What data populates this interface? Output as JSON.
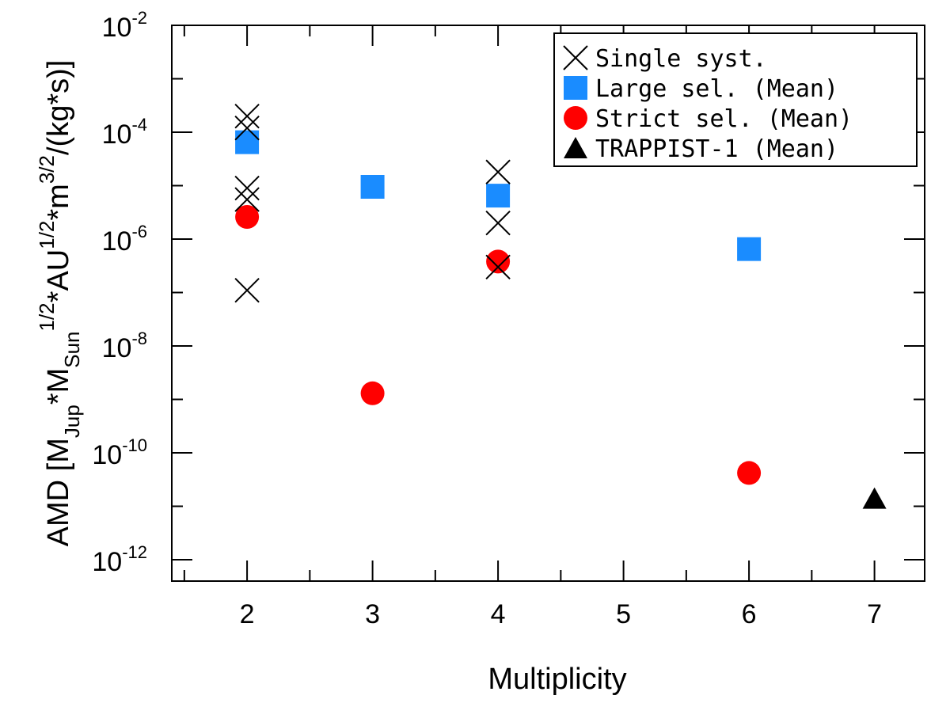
{
  "chart_data": {
    "type": "scatter",
    "title": "",
    "xlabel": "Multiplicity",
    "ylabel": {
      "text": "AMD [M",
      "parts": [
        {
          "t": "AMD [M",
          "s": "base"
        },
        {
          "t": "Jup",
          "s": "sub"
        },
        {
          "t": "*M",
          "s": "base"
        },
        {
          "t": "Sun",
          "s": "sub"
        },
        {
          "t": "1/2",
          "s": "sup"
        },
        {
          "t": "*AU",
          "s": "base"
        },
        {
          "t": "1/2",
          "s": "sup"
        },
        {
          "t": "*m",
          "s": "base"
        },
        {
          "t": "3/2",
          "s": "sup"
        },
        {
          "t": "/(kg*s)]",
          "s": "base"
        }
      ]
    },
    "xlim": [
      1.4,
      7.4
    ],
    "ylim_log10": [
      -12.4,
      -2
    ],
    "yscale": "log",
    "xticks": [
      2,
      3,
      4,
      5,
      6,
      7
    ],
    "yticks": [
      {
        "base": "10",
        "exp": "-2",
        "log": -2
      },
      {
        "base": "10",
        "exp": "-4",
        "log": -4
      },
      {
        "base": "10",
        "exp": "-6",
        "log": -6
      },
      {
        "base": "10",
        "exp": "-8",
        "log": -8
      },
      {
        "base": "10",
        "exp": "-10",
        "log": -10
      },
      {
        "base": "10",
        "exp": "-12",
        "log": -12
      }
    ],
    "series": [
      {
        "name": "Single syst.",
        "marker": "x",
        "color": "#000000",
        "points": [
          {
            "x": 2,
            "y": 0.0002
          },
          {
            "x": 2,
            "y": 0.00012
          },
          {
            "x": 2,
            "y": 9e-06
          },
          {
            "x": 2,
            "y": 5.5e-06
          },
          {
            "x": 2,
            "y": 1.1e-07
          },
          {
            "x": 4,
            "y": 1.8e-05
          },
          {
            "x": 4,
            "y": 2e-06
          },
          {
            "x": 4,
            "y": 3e-07
          }
        ]
      },
      {
        "name": "Large sel. (Mean)",
        "marker": "square",
        "color": "#1a8cff",
        "points": [
          {
            "x": 2,
            "y": 6.5e-05
          },
          {
            "x": 3,
            "y": 9.5e-06
          },
          {
            "x": 4,
            "y": 6.5e-06
          },
          {
            "x": 6,
            "y": 6.5e-07
          }
        ]
      },
      {
        "name": "Strict sel. (Mean)",
        "marker": "circle",
        "color": "#ff0000",
        "points": [
          {
            "x": 2,
            "y": 2.6e-06
          },
          {
            "x": 3,
            "y": 1.3e-09
          },
          {
            "x": 4,
            "y": 3.8e-07
          },
          {
            "x": 6,
            "y": 4.2e-11
          }
        ]
      },
      {
        "name": "TRAPPIST-1 (Mean)",
        "marker": "triangle",
        "color": "#000000",
        "points": [
          {
            "x": 7,
            "y": 1.4e-11
          }
        ]
      }
    ],
    "legend_position": "top-right"
  }
}
